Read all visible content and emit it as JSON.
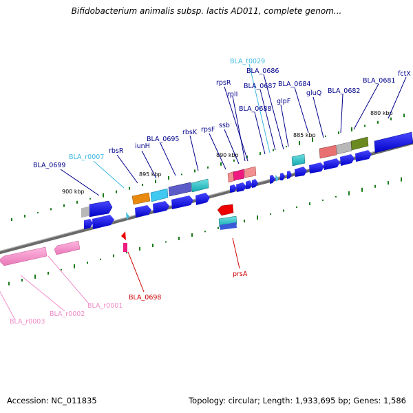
{
  "title": "Bifidobacterium animalis subsp. lactis AD011, complete genom...",
  "footer": {
    "accession": "Accession: NC_011835",
    "summary": "Topology: circular; Length: 1,933,695 bp; Genes: 1,586"
  },
  "ticks": [
    "900 kbp",
    "895 kbp",
    "890 kbp",
    "885 kbp",
    "880 kbp"
  ],
  "colors": {
    "cds": "#0a0ae6",
    "trna": "#45c0e0",
    "rrna": "#f08cc8",
    "negative_feature": "#cc0000",
    "backbone": "#707070"
  },
  "labels": [
    {
      "text": "fctX",
      "color": "#00008b"
    },
    {
      "text": "BLA_0681",
      "color": "#00008b"
    },
    {
      "text": "BLA_0682",
      "color": "#00008b"
    },
    {
      "text": "gluQ",
      "color": "#00008b"
    },
    {
      "text": "BLA_0684",
      "color": "#00008b"
    },
    {
      "text": "glpF",
      "color": "#00008b"
    },
    {
      "text": "BLA_0686",
      "color": "#00008b"
    },
    {
      "text": "BLA_t0029",
      "color": "#3cb8e0"
    },
    {
      "text": "BLA_0687",
      "color": "#00008b"
    },
    {
      "text": "BLA_0688",
      "color": "#00008b"
    },
    {
      "text": "rpsR",
      "color": "#00008b"
    },
    {
      "text": "rplI",
      "color": "#00008b"
    },
    {
      "text": "ssb",
      "color": "#00008b"
    },
    {
      "text": "rpsF",
      "color": "#00008b"
    },
    {
      "text": "rbsK",
      "color": "#00008b"
    },
    {
      "text": "BLA_0695",
      "color": "#00008b"
    },
    {
      "text": "iunH",
      "color": "#00008b"
    },
    {
      "text": "rbsR",
      "color": "#00008b"
    },
    {
      "text": "BLA_r0007",
      "color": "#3cb8e0"
    },
    {
      "text": "BLA_0699",
      "color": "#00008b"
    },
    {
      "text": "prsA",
      "color": "#cc0000"
    },
    {
      "text": "BLA_0698",
      "color": "#cc0000"
    },
    {
      "text": "BLA_r0001",
      "color": "#f08cc8"
    },
    {
      "text": "BLA_r0002",
      "color": "#f08cc8"
    },
    {
      "text": "BLA_r0003",
      "color": "#f08cc8"
    }
  ]
}
